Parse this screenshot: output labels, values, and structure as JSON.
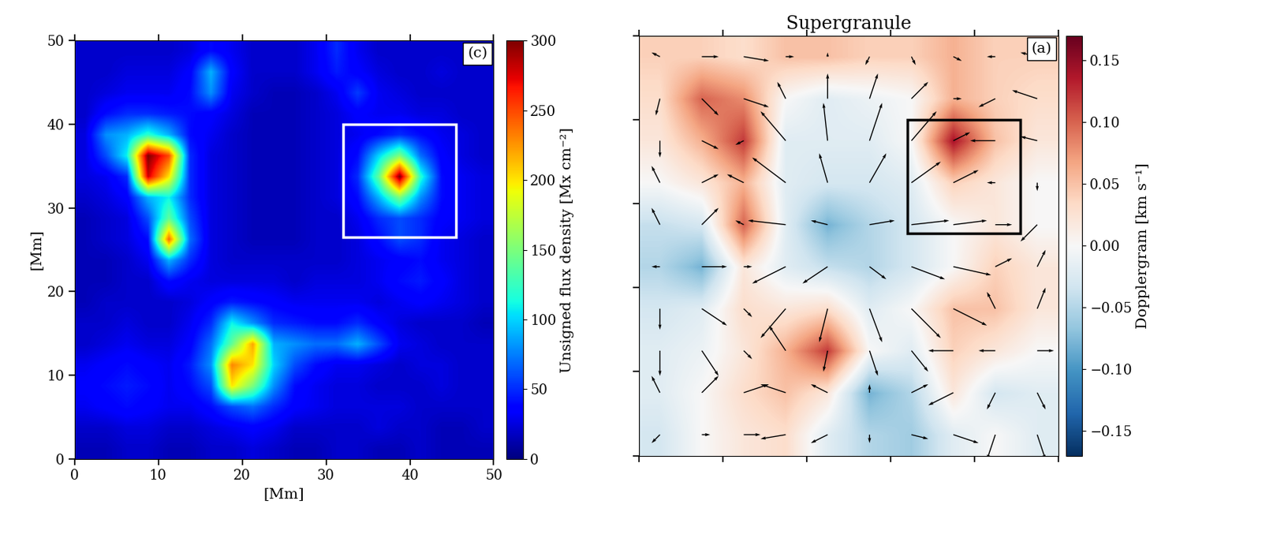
{
  "chart_data": [
    {
      "type": "heatmap",
      "panel_label": "(c)",
      "xlabel": "[Mm]",
      "ylabel": "[Mm]",
      "xlim": [
        0,
        50
      ],
      "ylim": [
        0,
        50
      ],
      "xticks": [
        0,
        10,
        20,
        30,
        40,
        50
      ],
      "yticks": [
        0,
        10,
        20,
        30,
        40,
        50
      ],
      "color": "jet",
      "colorbar": {
        "label": "Unsigned flux density [Mx cm⁻²]",
        "range": [
          0,
          300
        ],
        "ticks": [
          0,
          50,
          100,
          150,
          200,
          250,
          300
        ]
      },
      "box": {
        "x": [
          32,
          45.5
        ],
        "y": [
          26.5,
          40
        ],
        "color": "white"
      },
      "cells": [
        [
          15,
          15,
          20,
          20,
          15,
          15,
          20,
          20,
          25,
          20,
          15,
          15,
          20,
          20,
          15,
          15,
          20,
          15,
          15,
          15
        ],
        [
          20,
          20,
          25,
          25,
          20,
          20,
          25,
          30,
          35,
          30,
          20,
          20,
          20,
          20,
          25,
          20,
          20,
          15,
          15,
          20
        ],
        [
          30,
          35,
          40,
          35,
          30,
          30,
          40,
          60,
          70,
          50,
          35,
          30,
          25,
          25,
          25,
          25,
          20,
          20,
          20,
          20
        ],
        [
          35,
          40,
          45,
          40,
          30,
          40,
          60,
          200,
          150,
          80,
          40,
          30,
          25,
          25,
          20,
          20,
          20,
          25,
          20,
          20
        ],
        [
          30,
          35,
          40,
          35,
          30,
          45,
          80,
          230,
          200,
          100,
          60,
          40,
          30,
          30,
          25,
          20,
          25,
          25,
          20,
          20
        ],
        [
          20,
          25,
          30,
          25,
          25,
          35,
          70,
          140,
          220,
          90,
          80,
          70,
          70,
          90,
          60,
          30,
          25,
          20,
          20,
          20
        ],
        [
          20,
          20,
          25,
          20,
          20,
          30,
          50,
          110,
          80,
          50,
          45,
          40,
          40,
          50,
          35,
          25,
          20,
          20,
          20,
          15
        ],
        [
          15,
          20,
          20,
          20,
          20,
          25,
          35,
          45,
          40,
          35,
          30,
          30,
          30,
          30,
          25,
          30,
          35,
          30,
          25,
          20
        ],
        [
          15,
          15,
          20,
          20,
          40,
          30,
          25,
          25,
          25,
          25,
          20,
          25,
          25,
          25,
          30,
          40,
          45,
          35,
          25,
          20
        ],
        [
          15,
          15,
          20,
          30,
          90,
          50,
          25,
          20,
          20,
          20,
          20,
          20,
          20,
          25,
          30,
          35,
          40,
          30,
          25,
          20
        ],
        [
          15,
          20,
          25,
          40,
          240,
          70,
          25,
          20,
          15,
          15,
          15,
          20,
          20,
          25,
          40,
          60,
          50,
          30,
          25,
          20
        ],
        [
          15,
          20,
          25,
          60,
          140,
          60,
          25,
          20,
          15,
          15,
          15,
          20,
          20,
          30,
          50,
          60,
          50,
          35,
          30,
          25
        ],
        [
          20,
          25,
          35,
          90,
          110,
          50,
          25,
          20,
          15,
          15,
          15,
          20,
          25,
          40,
          90,
          150,
          80,
          40,
          30,
          25
        ],
        [
          25,
          30,
          50,
          280,
          200,
          50,
          25,
          20,
          15,
          15,
          15,
          20,
          25,
          50,
          140,
          300,
          120,
          40,
          30,
          25
        ],
        [
          25,
          60,
          110,
          300,
          250,
          50,
          25,
          20,
          15,
          15,
          15,
          20,
          25,
          40,
          100,
          150,
          70,
          35,
          25,
          20
        ],
        [
          25,
          80,
          90,
          120,
          90,
          40,
          30,
          20,
          15,
          15,
          15,
          20,
          25,
          30,
          40,
          50,
          40,
          30,
          25,
          20
        ],
        [
          20,
          40,
          50,
          50,
          45,
          40,
          35,
          25,
          15,
          15,
          15,
          20,
          25,
          35,
          30,
          30,
          25,
          25,
          20,
          20
        ],
        [
          20,
          25,
          30,
          30,
          30,
          40,
          80,
          30,
          20,
          15,
          15,
          20,
          30,
          55,
          30,
          25,
          20,
          20,
          20,
          20
        ],
        [
          20,
          20,
          25,
          25,
          25,
          35,
          90,
          35,
          20,
          20,
          20,
          30,
          45,
          35,
          25,
          20,
          20,
          25,
          20,
          20
        ],
        [
          20,
          20,
          20,
          20,
          20,
          25,
          40,
          30,
          20,
          20,
          20,
          30,
          50,
          30,
          20,
          20,
          20,
          20,
          20,
          20
        ]
      ]
    },
    {
      "type": "heatmap",
      "title": "Supergranule",
      "panel_label": "(a)",
      "tick_labels": false,
      "xlim": [
        0,
        50
      ],
      "ylim": [
        0,
        50
      ],
      "xticks": [
        0,
        10,
        20,
        30,
        40,
        50
      ],
      "yticks": [
        0,
        10,
        20,
        30,
        40,
        50
      ],
      "color": "RdBu_r",
      "colorbar": {
        "label": "Dopplergram [km s⁻¹]",
        "range": [
          -0.17,
          0.17
        ],
        "ticks": [
          {
            "value": -0.15,
            "label": "−0.15"
          },
          {
            "value": -0.1,
            "label": "−0.10"
          },
          {
            "value": -0.05,
            "label": "−0.05"
          },
          {
            "value": 0,
            "label": "0.00"
          },
          {
            "value": 0.05,
            "label": "0.05"
          },
          {
            "value": 0.1,
            "label": "0.10"
          },
          {
            "value": 0.15,
            "label": "0.15"
          }
        ]
      },
      "box": {
        "x": [
          32,
          45.5
        ],
        "y": [
          26.5,
          40
        ],
        "color": "black"
      },
      "cells": [
        [
          -0.03,
          0.0,
          0.02,
          0.03,
          -0.02,
          -0.05,
          -0.06,
          -0.02,
          0.0,
          -0.02
        ],
        [
          -0.02,
          0.0,
          0.03,
          0.05,
          0.02,
          -0.08,
          -0.05,
          0.02,
          -0.03,
          -0.02
        ],
        [
          -0.02,
          -0.01,
          0.02,
          0.06,
          0.12,
          0.0,
          -0.02,
          0.04,
          0.02,
          0.0
        ],
        [
          -0.03,
          -0.02,
          0.03,
          0.02,
          0.03,
          -0.02,
          0.0,
          0.05,
          0.05,
          0.02
        ],
        [
          -0.05,
          -0.08,
          0.02,
          -0.02,
          -0.04,
          -0.05,
          -0.03,
          0.0,
          0.04,
          0.02
        ],
        [
          -0.04,
          -0.03,
          0.1,
          -0.02,
          -0.08,
          -0.05,
          -0.03,
          0.0,
          0.02,
          0.0
        ],
        [
          0.0,
          0.02,
          0.06,
          -0.02,
          -0.03,
          -0.03,
          -0.02,
          0.04,
          0.02,
          0.0
        ],
        [
          0.02,
          0.06,
          0.12,
          -0.02,
          -0.02,
          -0.02,
          0.0,
          0.14,
          0.05,
          0.02
        ],
        [
          0.03,
          0.1,
          0.08,
          0.0,
          -0.02,
          -0.01,
          0.0,
          0.06,
          0.04,
          0.03
        ],
        [
          0.04,
          0.04,
          0.03,
          0.05,
          0.05,
          0.04,
          0.04,
          0.06,
          0.04,
          0.04
        ]
      ],
      "vectors": {
        "color": "black",
        "x": [
          2.5,
          7.5,
          12.5,
          17.5,
          22.5,
          27.5,
          32.5,
          37.5,
          42.5,
          47.5
        ],
        "y": [
          2.5,
          7.5,
          12.5,
          17.5,
          22.5,
          27.5,
          32.5,
          37.5,
          42.5,
          47.5
        ],
        "u": [
          [
            -0.1,
            0.1,
            0.2,
            -0.3,
            -0.2,
            0.0,
            0.2,
            0.3,
            -0.1,
            0.1
          ],
          [
            -0.1,
            0.2,
            0.3,
            -0.3,
            -0.2,
            0.0,
            0.2,
            -0.3,
            -0.1,
            0.1
          ],
          [
            0.0,
            0.2,
            0.1,
            -0.2,
            -0.05,
            0.1,
            0.2,
            -0.3,
            -0.2,
            0.2
          ],
          [
            0.0,
            0.3,
            0.1,
            -0.3,
            -0.1,
            0.15,
            0.35,
            0.4,
            -0.1,
            0.1
          ],
          [
            -0.1,
            0.3,
            0.1,
            -0.4,
            -0.3,
            0.2,
            0.4,
            0.45,
            0.2,
            0.1
          ],
          [
            -0.1,
            0.2,
            -0.1,
            -0.45,
            -0.2,
            0.3,
            0.45,
            0.4,
            0.2,
            -0.2
          ],
          [
            -0.1,
            0.2,
            -0.2,
            -0.4,
            -0.1,
            0.2,
            0.35,
            0.3,
            -0.1,
            0.0
          ],
          [
            0.0,
            0.2,
            -0.1,
            -0.3,
            -0.05,
            0.15,
            0.3,
            0.2,
            -0.3,
            -0.2
          ],
          [
            -0.05,
            0.2,
            0.3,
            -0.1,
            0.0,
            0.1,
            0.2,
            0.1,
            -0.2,
            -0.3
          ],
          [
            -0.1,
            0.2,
            0.3,
            0.1,
            0.0,
            -0.05,
            0.05,
            0.1,
            -0.1,
            -0.2
          ]
        ],
        "v": [
          [
            -0.1,
            0.0,
            0.0,
            -0.05,
            -0.1,
            -0.1,
            -0.05,
            -0.1,
            -0.3,
            -0.3
          ],
          [
            0.2,
            0.2,
            0.1,
            0.1,
            0.1,
            0.1,
            0.1,
            -0.15,
            -0.2,
            -0.2
          ],
          [
            -0.3,
            -0.3,
            -0.1,
            0.3,
            -0.25,
            -0.3,
            -0.25,
            0.0,
            0.0,
            0.0
          ],
          [
            -0.25,
            -0.2,
            -0.1,
            -0.35,
            -0.4,
            -0.4,
            -0.35,
            -0.2,
            0.2,
            0.25
          ],
          [
            0.0,
            0.0,
            0.0,
            -0.2,
            -0.2,
            -0.15,
            -0.15,
            -0.1,
            0.1,
            0.2
          ],
          [
            0.2,
            0.2,
            0.05,
            0.05,
            0.05,
            0.05,
            0.05,
            0.05,
            0.0,
            -0.2
          ],
          [
            0.2,
            0.1,
            0.1,
            0.3,
            0.35,
            0.35,
            0.25,
            0.15,
            0.0,
            -0.1
          ],
          [
            -0.2,
            -0.1,
            -0.05,
            0.35,
            0.45,
            0.45,
            0.35,
            0.1,
            0.0,
            0.05
          ],
          [
            -0.2,
            -0.2,
            -0.1,
            0.2,
            0.3,
            0.3,
            0.2,
            0.0,
            -0.1,
            0.1
          ],
          [
            0.05,
            0.0,
            -0.05,
            0.0,
            0.05,
            -0.1,
            -0.1,
            -0.05,
            0.0,
            0.05
          ]
        ]
      }
    }
  ]
}
